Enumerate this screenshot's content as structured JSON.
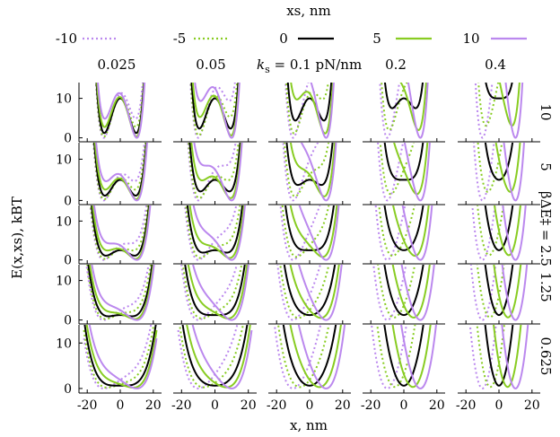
{
  "chart_data": {
    "type": "line",
    "title": "",
    "xlabel": "x, nm",
    "ylabel": "E(x,xs), kBT",
    "legend_title": "xs, nm",
    "legend_placement": "top",
    "col_param_label": "ks",
    "col_param_unit": "pN/nm",
    "row_param_label": "βΔE‡",
    "columns_ks": [
      "0.025",
      "0.05",
      "0.1",
      "0.2",
      "0.4"
    ],
    "rows_barrier": [
      "10",
      "5",
      "2.5",
      "1.25",
      "0.625"
    ],
    "xlim": [
      -25,
      25
    ],
    "ylim": [
      -1,
      14
    ],
    "xticks": [
      -20,
      0,
      20
    ],
    "yticks": [
      0,
      10
    ],
    "grid": false,
    "model": "E = barrier * (x^2/x0^2 - 1)^2 + (ks/2)*(x - xs)^2, x0 = 10 nm",
    "series": [
      {
        "name": "-10",
        "xs": -10,
        "color": "#bb88ee",
        "dash": "dotted"
      },
      {
        "name": "-5",
        "xs": -5,
        "color": "#88cc22",
        "dash": "dotted"
      },
      {
        "name": "0",
        "xs": 0,
        "color": "#000000",
        "dash": "solid"
      },
      {
        "name": "5",
        "xs": 5,
        "color": "#88cc22",
        "dash": "solid"
      },
      {
        "name": "10",
        "xs": 10,
        "color": "#bb88ee",
        "dash": "solid"
      }
    ]
  }
}
